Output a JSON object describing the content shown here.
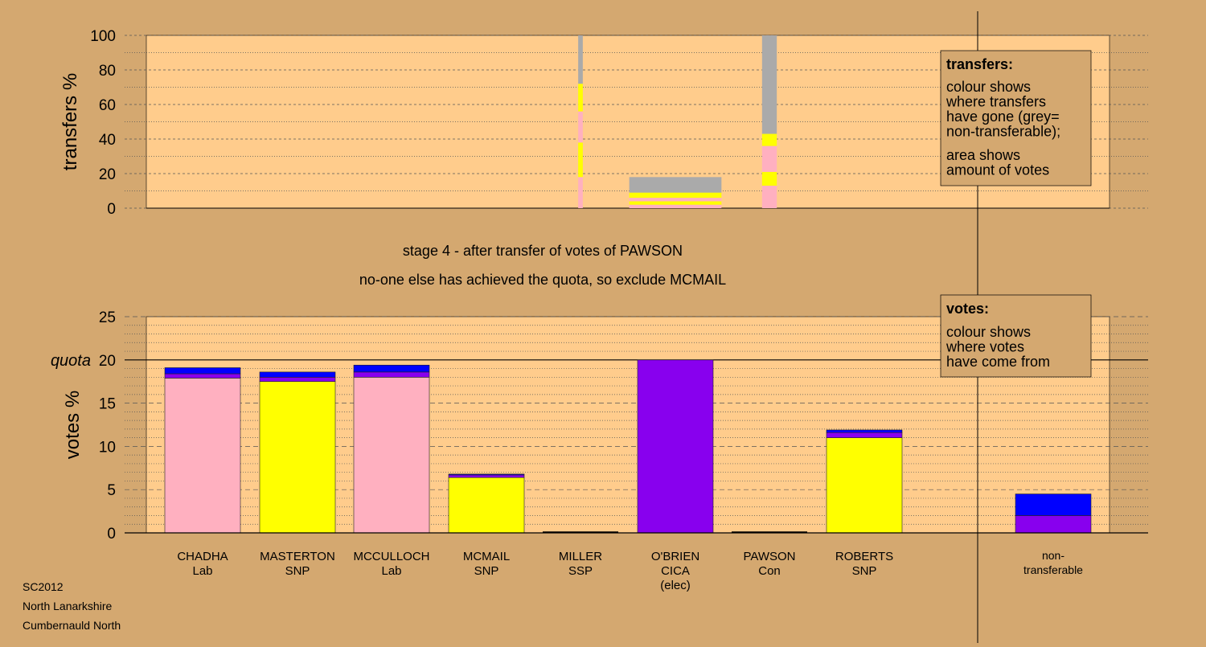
{
  "titles": {
    "line1": "stage 4 - after transfer of votes of PAWSON",
    "line2": "no-one else has achieved the quota, so exclude MCMAIL"
  },
  "footer": [
    "SC2012",
    "North Lanarkshire",
    "Cumbernauld North"
  ],
  "legends": {
    "transfers": {
      "title": "transfers:",
      "lines1": [
        "colour shows",
        "where transfers",
        "have gone (grey=",
        "non-transferable);"
      ],
      "lines2": [
        "area shows",
        "amount of votes"
      ]
    },
    "votes": {
      "title": "votes:",
      "lines1": [
        "colour shows",
        "where votes",
        "have come from"
      ]
    }
  },
  "colors": {
    "background": "#d4a870",
    "plot": "#ffcc8c",
    "Lab": "#ffb0c0",
    "SNP": "#ffff00",
    "CICA": "#8800ee",
    "Con": "#0000ff",
    "NT": "#aaaaaa"
  },
  "chart_data": [
    {
      "type": "bar",
      "name": "transfers",
      "ylabel": "transfers %",
      "ylim": [
        0,
        100
      ],
      "yticks": [
        0,
        20,
        40,
        60,
        80,
        100
      ],
      "columns": [
        {
          "candidate": "MILLER",
          "total": 100,
          "width_ratio": 0.05,
          "segments": [
            {
              "party": "Lab",
              "value": 18
            },
            {
              "party": "SNP",
              "value": 20
            },
            {
              "party": "Lab",
              "value": 18
            },
            {
              "party": "SNP",
              "value": 16
            },
            {
              "party": "NT",
              "value": 28
            }
          ]
        },
        {
          "candidate": "O'BRIEN",
          "total": 18,
          "width_ratio": 1.0,
          "segments": [
            {
              "party": "Lab",
              "value": 2
            },
            {
              "party": "SNP",
              "value": 2
            },
            {
              "party": "Lab",
              "value": 2
            },
            {
              "party": "SNP",
              "value": 3
            },
            {
              "party": "NT",
              "value": 9
            }
          ]
        },
        {
          "candidate": "PAWSON",
          "total": 100,
          "width_ratio": 0.16,
          "segments": [
            {
              "party": "Lab",
              "value": 13
            },
            {
              "party": "SNP",
              "value": 8
            },
            {
              "party": "Lab",
              "value": 15
            },
            {
              "party": "SNP",
              "value": 7
            },
            {
              "party": "NT",
              "value": 57
            }
          ]
        }
      ]
    },
    {
      "type": "bar",
      "name": "votes",
      "ylabel": "votes %",
      "ylim": [
        0,
        25
      ],
      "yticks": [
        0,
        5,
        10,
        15,
        20,
        25
      ],
      "quota": 20,
      "quota_label": "quota",
      "candidates": [
        {
          "name": "CHADHA",
          "party": "Lab",
          "segments": [
            {
              "party": "Lab",
              "value": 17.9
            },
            {
              "party": "CICA",
              "value": 0.5
            },
            {
              "party": "Con",
              "value": 0.7
            }
          ]
        },
        {
          "name": "MASTERTON",
          "party": "SNP",
          "segments": [
            {
              "party": "SNP",
              "value": 17.5
            },
            {
              "party": "CICA",
              "value": 0.5
            },
            {
              "party": "Con",
              "value": 0.6
            }
          ]
        },
        {
          "name": "MCCULLOCH",
          "party": "Lab",
          "segments": [
            {
              "party": "Lab",
              "value": 18.0
            },
            {
              "party": "CICA",
              "value": 0.6
            },
            {
              "party": "Con",
              "value": 0.8
            }
          ]
        },
        {
          "name": "MCMAIL",
          "party": "SNP",
          "segments": [
            {
              "party": "SNP",
              "value": 6.4
            },
            {
              "party": "CICA",
              "value": 0.3
            },
            {
              "party": "Con",
              "value": 0.1
            }
          ]
        },
        {
          "name": "MILLER",
          "party": "SSP",
          "segments": []
        },
        {
          "name": "O'BRIEN",
          "party": "CICA",
          "note": "(elec)",
          "segments": [
            {
              "party": "CICA",
              "value": 20.0
            }
          ]
        },
        {
          "name": "PAWSON",
          "party": "Con",
          "segments": []
        },
        {
          "name": "ROBERTS",
          "party": "SNP",
          "segments": [
            {
              "party": "SNP",
              "value": 11.0
            },
            {
              "party": "CICA",
              "value": 0.6
            },
            {
              "party": "Con",
              "value": 0.3
            }
          ]
        }
      ],
      "nontransferable": {
        "label": [
          "non-",
          "transferable"
        ],
        "segments": [
          {
            "party": "CICA",
            "value": 2.0
          },
          {
            "party": "Con",
            "value": 2.5
          }
        ]
      }
    }
  ]
}
